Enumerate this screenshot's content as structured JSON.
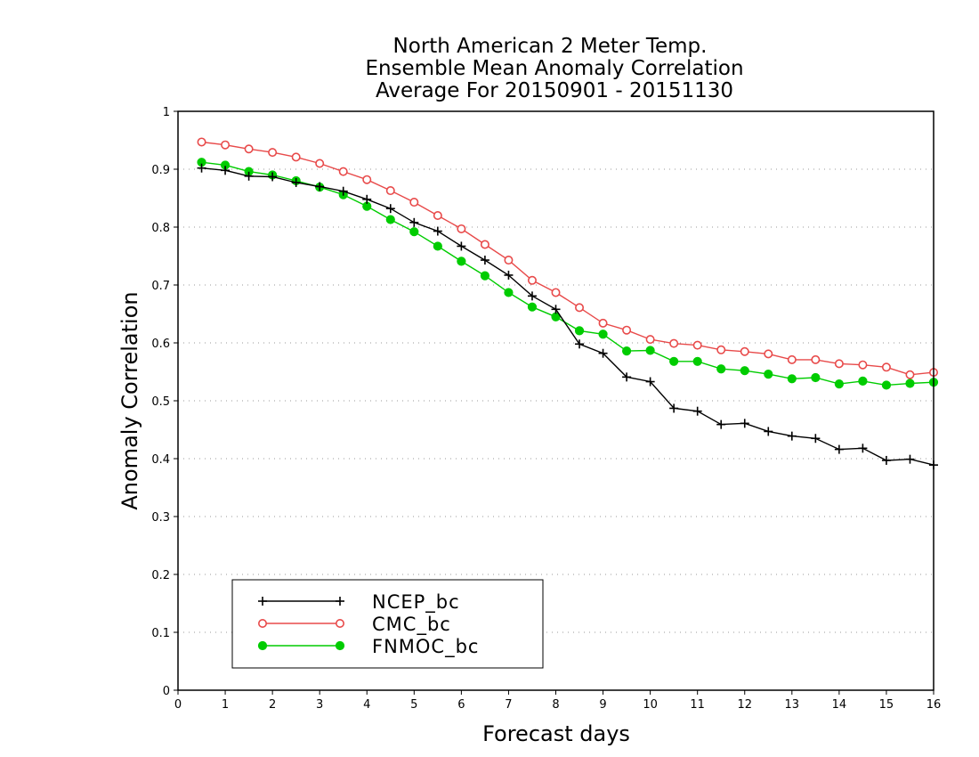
{
  "chart_data": {
    "type": "line",
    "title": [
      "North American 2 Meter Temp.",
      "Ensemble Mean Anomaly Correlation",
      "Average For 20150901 - 20151130"
    ],
    "xlabel": "Forecast days",
    "ylabel": "Anomaly Correlation",
    "xlim": [
      0,
      16
    ],
    "ylim": [
      0,
      1
    ],
    "x_ticks": [
      "0",
      "1",
      "2",
      "3",
      "4",
      "5",
      "6",
      "7",
      "8",
      "9",
      "10",
      "11",
      "12",
      "13",
      "14",
      "15",
      "16"
    ],
    "y_ticks": [
      "0",
      "0.1",
      "0.2",
      "0.3",
      "0.4",
      "0.5",
      "0.6",
      "0.7",
      "0.8",
      "0.9",
      "1"
    ],
    "grid": "y-dotted",
    "legend_position": "bottom-left",
    "x": [
      0.5,
      1,
      1.5,
      2,
      2.5,
      3,
      3.5,
      4,
      4.5,
      5,
      5.5,
      6,
      6.5,
      7,
      7.5,
      8,
      8.5,
      9,
      9.5,
      10,
      10.5,
      11,
      11.5,
      12,
      12.5,
      13,
      13.5,
      14,
      14.5,
      15,
      15.5,
      16
    ],
    "series": [
      {
        "name": "NCEP_bc",
        "color": "#000000",
        "marker": "plus",
        "values": [
          0.902,
          0.898,
          0.888,
          0.887,
          0.877,
          0.87,
          0.862,
          0.848,
          0.832,
          0.808,
          0.793,
          0.767,
          0.743,
          0.717,
          0.681,
          0.658,
          0.598,
          0.582,
          0.541,
          0.533,
          0.487,
          0.482,
          0.459,
          0.461,
          0.447,
          0.439,
          0.435,
          0.416,
          0.418,
          0.397,
          0.399,
          0.389
        ]
      },
      {
        "name": "CMC_bc",
        "color": "#e84a4a",
        "marker": "open-circle",
        "values": [
          0.947,
          0.942,
          0.935,
          0.929,
          0.921,
          0.91,
          0.896,
          0.882,
          0.863,
          0.843,
          0.82,
          0.797,
          0.77,
          0.743,
          0.708,
          0.687,
          0.661,
          0.634,
          0.622,
          0.606,
          0.599,
          0.596,
          0.588,
          0.585,
          0.581,
          0.571,
          0.571,
          0.564,
          0.562,
          0.558,
          0.545,
          0.549
        ]
      },
      {
        "name": "FNMOC_bc",
        "color": "#00cc00",
        "marker": "filled-circle",
        "values": [
          0.912,
          0.907,
          0.896,
          0.89,
          0.88,
          0.869,
          0.856,
          0.836,
          0.813,
          0.792,
          0.767,
          0.741,
          0.716,
          0.687,
          0.662,
          0.645,
          0.621,
          0.615,
          0.586,
          0.587,
          0.568,
          0.568,
          0.555,
          0.552,
          0.546,
          0.538,
          0.54,
          0.529,
          0.534,
          0.527,
          0.53,
          0.532
        ]
      }
    ]
  }
}
